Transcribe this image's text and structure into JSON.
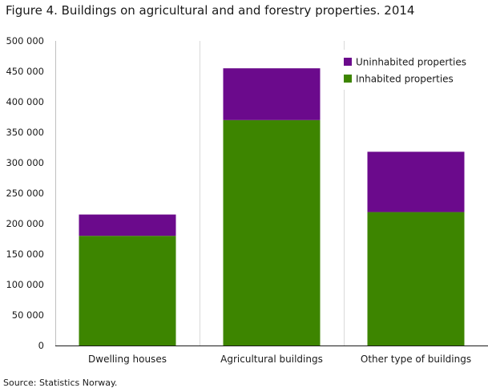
{
  "chart_data": {
    "type": "bar",
    "stacked": true,
    "title": "Figure 4. Buildings on agricultural and and forestry properties. 2014",
    "source": "Source: Statistics Norway.",
    "categories": [
      "Dwelling houses",
      "Agricultural buildings",
      "Other type of buildings"
    ],
    "series": [
      {
        "name": "Inhabited properties",
        "values": [
          180000,
          370000,
          219000
        ],
        "color": "#3d8500"
      },
      {
        "name": "Uninhabited properties",
        "values": [
          35000,
          85000,
          99000
        ],
        "color": "#6b0a8c"
      }
    ],
    "ylim": [
      0,
      500000
    ],
    "yticks": [
      "0",
      "50 000",
      "100 000",
      "150 000",
      "200 000",
      "250 000",
      "300 000",
      "350 000",
      "400 000",
      "450 000",
      "500 000"
    ],
    "legend_position": "top-right",
    "grid": "vertical"
  }
}
